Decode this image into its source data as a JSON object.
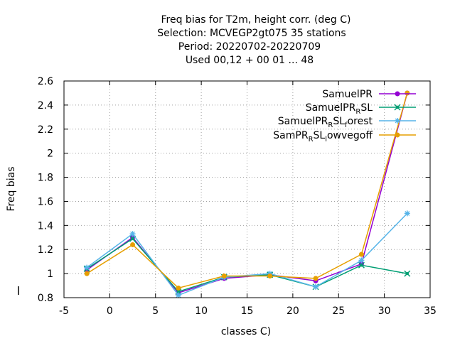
{
  "title_lines": [
    "Freq bias  for T2m, height corr. (deg C)",
    "Selection: MCVEGP2gt075      35 stations",
    "Period: 20220702-20220709",
    "Used  00,12  + 00 01 ... 48"
  ],
  "chart_data": {
    "type": "line",
    "xlabel": "classes C)",
    "ylabel": "Freq bias",
    "xlim": [
      -5,
      35
    ],
    "ylim": [
      0.8,
      2.6
    ],
    "x_ticks": [
      -5,
      0,
      5,
      10,
      15,
      20,
      25,
      30,
      35
    ],
    "y_ticks": [
      0.8,
      1,
      1.2,
      1.4,
      1.6,
      1.8,
      2,
      2.2,
      2.4,
      2.6
    ],
    "x_tick_labels": [
      "-5",
      "0",
      "5",
      "10",
      "15",
      "20",
      "25",
      "30",
      "35"
    ],
    "y_tick_labels": [
      "0.8",
      "1",
      "1.2",
      "1.4",
      "1.6",
      "1.8",
      "2",
      "2.2",
      "2.4",
      "2.6"
    ],
    "grid": true,
    "legend_position": "top-right",
    "x": [
      -2.5,
      2.5,
      7.5,
      12.5,
      17.5,
      22.5,
      27.5,
      32.5
    ],
    "series": [
      {
        "name": "SamuelPR",
        "legend_main": "SamuelPR",
        "legend_sub1": "",
        "legend_mid": "",
        "legend_sub2": "",
        "legend_end": "",
        "color": "#9400d3",
        "marker": "circle",
        "values": [
          1.03,
          1.3,
          0.84,
          0.96,
          0.99,
          0.94,
          1.08,
          2.5
        ]
      },
      {
        "name": "SamuelPR_RSL",
        "legend_main": "SamuelPR",
        "legend_sub1": "R",
        "legend_mid": "SL",
        "legend_sub2": "",
        "legend_end": "",
        "color": "#009e73",
        "marker": "cross",
        "values": [
          1.04,
          1.29,
          0.85,
          0.97,
          0.99,
          0.89,
          1.07,
          1.0
        ]
      },
      {
        "name": "SamuelPR_RSL_forest",
        "legend_main": "SamuelPR",
        "legend_sub1": "R",
        "legend_mid": "SL",
        "legend_sub2": "f",
        "legend_end": "orest",
        "color": "#56b4e9",
        "marker": "star",
        "values": [
          1.05,
          1.33,
          0.82,
          0.97,
          1.0,
          0.89,
          1.11,
          1.5
        ]
      },
      {
        "name": "SamPR_RSL_lowvegoff",
        "legend_main": "SamPR",
        "legend_sub1": "R",
        "legend_mid": "SL",
        "legend_sub2": "l",
        "legend_end": "owvegoff",
        "color": "#e69f00",
        "marker": "circle",
        "values": [
          1.0,
          1.24,
          0.88,
          0.98,
          0.98,
          0.96,
          1.16,
          2.5
        ]
      }
    ]
  }
}
